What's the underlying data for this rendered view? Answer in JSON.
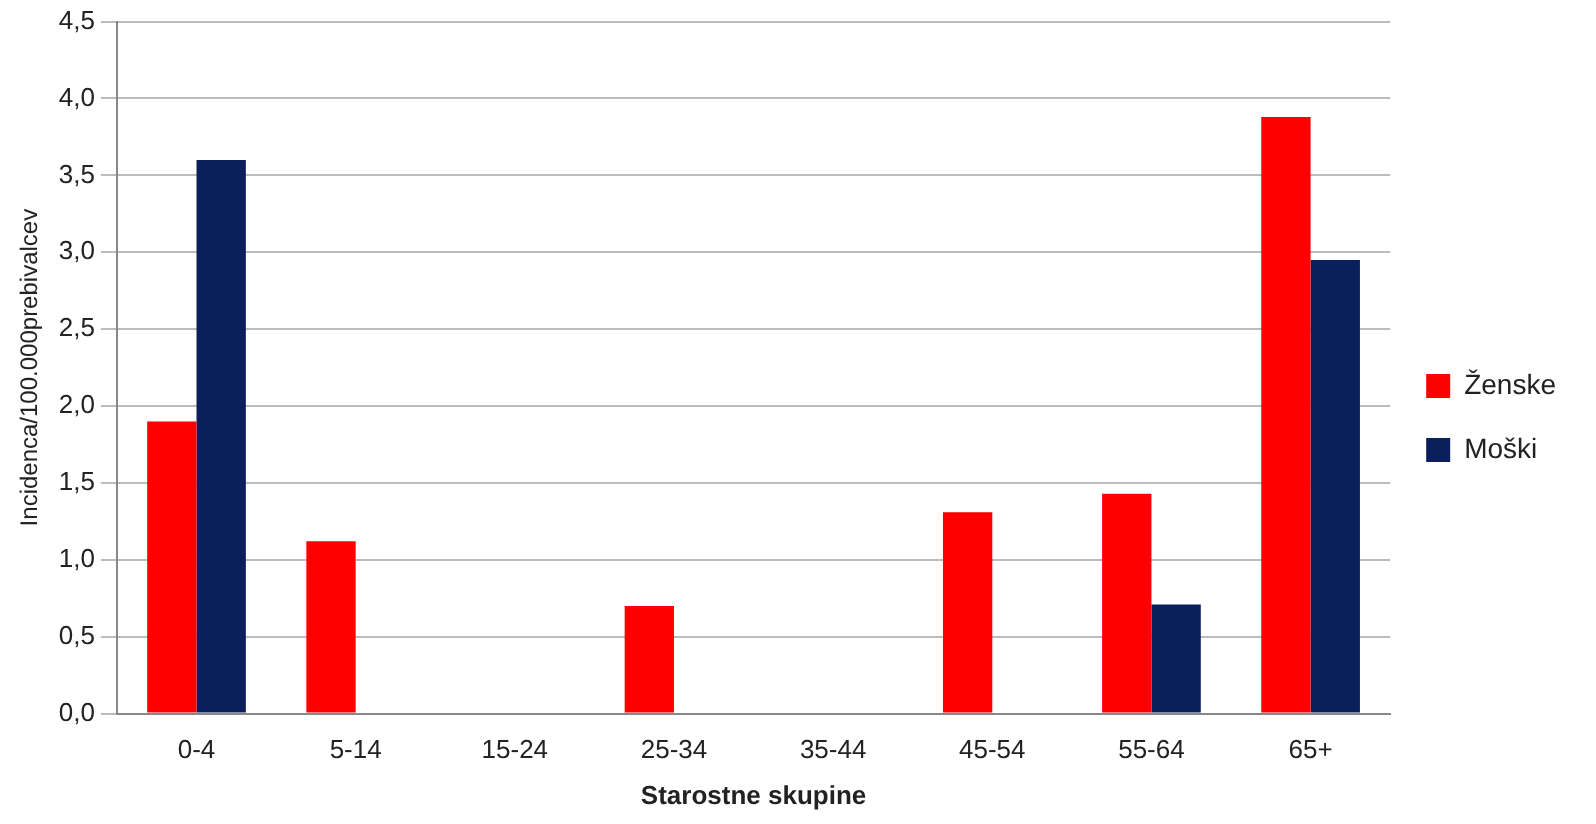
{
  "chart_data": {
    "type": "bar",
    "xlabel": "Starostne skupine",
    "ylabel": "Incidenca/100.000prebivalcev",
    "categories": [
      "0-4",
      "5-14",
      "15-24",
      "25-34",
      "35-44",
      "45-54",
      "55-64",
      "65+"
    ],
    "series": [
      {
        "name": "Ženske",
        "color": "#ff0000",
        "values": [
          1.9,
          1.12,
          0,
          0.7,
          0,
          1.31,
          1.43,
          3.88
        ]
      },
      {
        "name": "Moški",
        "color": "#0a1f5c",
        "values": [
          3.6,
          0,
          0,
          0,
          0,
          0,
          0.71,
          2.95
        ]
      }
    ],
    "ylim": [
      0,
      4.5
    ],
    "yticks": [
      {
        "value": 0,
        "label": "0,0"
      },
      {
        "value": 0.5,
        "label": "0,5"
      },
      {
        "value": 1,
        "label": "1,0"
      },
      {
        "value": 1.5,
        "label": "1,5"
      },
      {
        "value": 2,
        "label": "2,0"
      },
      {
        "value": 2.5,
        "label": "2,5"
      },
      {
        "value": 3,
        "label": "3,0"
      },
      {
        "value": 3.5,
        "label": "3,5"
      },
      {
        "value": 4,
        "label": "4,0"
      },
      {
        "value": 4.5,
        "label": "4,5"
      }
    ],
    "grid": "y",
    "legend": "right"
  }
}
